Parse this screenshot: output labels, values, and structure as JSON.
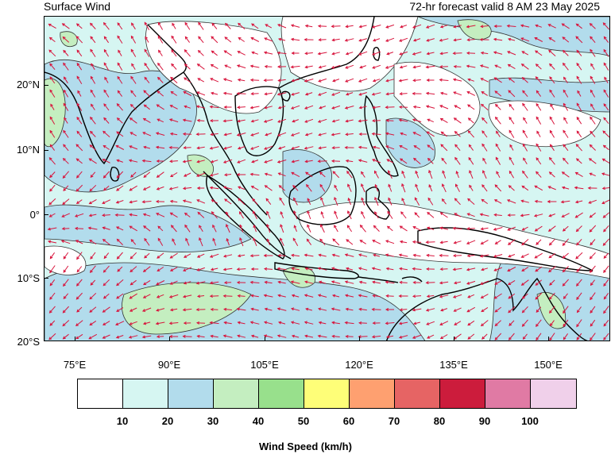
{
  "header": {
    "title": "Surface Wind",
    "forecast": "72-hr forecast valid 8 AM 23 May 2025"
  },
  "axes": {
    "lat_labels": [
      "20°N",
      "10°N",
      "0°",
      "10°S",
      "20°S"
    ],
    "lon_labels": [
      "75°E",
      "90°E",
      "105°E",
      "120°E",
      "135°E",
      "150°E"
    ]
  },
  "legend": {
    "title": "Wind Speed (km/h)",
    "thresholds": [
      "10",
      "20",
      "30",
      "40",
      "50",
      "60",
      "70",
      "80",
      "90",
      "100"
    ],
    "colors": [
      "#ffffff",
      "#d6f6f2",
      "#b2dcec",
      "#c4eec0",
      "#98e08c",
      "#fefe78",
      "#fea070",
      "#e66464",
      "#cc1c3c",
      "#e07aa4",
      "#f0d0ea"
    ]
  },
  "colors": {
    "arrow": "#d8143c",
    "coast": "#000000",
    "contour": "#222222"
  }
}
